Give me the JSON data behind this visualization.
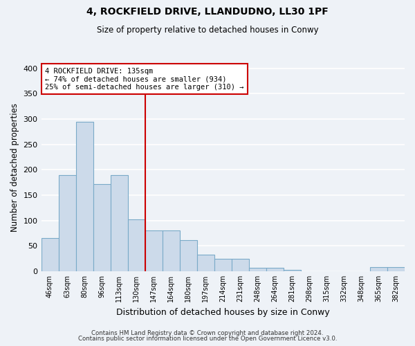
{
  "title": "4, ROCKFIELD DRIVE, LLANDUDNO, LL30 1PF",
  "subtitle": "Size of property relative to detached houses in Conwy",
  "xlabel": "Distribution of detached houses by size in Conwy",
  "ylabel": "Number of detached properties",
  "bar_color": "#ccdaea",
  "bar_edge_color": "#7aaac8",
  "bar_heights": [
    65,
    190,
    295,
    172,
    190,
    103,
    80,
    80,
    62,
    33,
    24,
    25,
    7,
    7,
    3,
    0,
    0,
    0,
    0,
    8,
    8
  ],
  "bin_labels": [
    "46sqm",
    "63sqm",
    "80sqm",
    "96sqm",
    "113sqm",
    "130sqm",
    "147sqm",
    "164sqm",
    "180sqm",
    "197sqm",
    "214sqm",
    "231sqm",
    "248sqm",
    "264sqm",
    "281sqm",
    "298sqm",
    "315sqm",
    "332sqm",
    "348sqm",
    "365sqm",
    "382sqm"
  ],
  "property_line_x": 5.5,
  "property_line_color": "#cc0000",
  "annotation_line1": "4 ROCKFIELD DRIVE: 135sqm",
  "annotation_line2": "← 74% of detached houses are smaller (934)",
  "annotation_line3": "25% of semi-detached houses are larger (310) →",
  "annotation_box_color": "#ffffff",
  "annotation_box_edge": "#cc0000",
  "ylim": [
    0,
    410
  ],
  "yticks": [
    0,
    50,
    100,
    150,
    200,
    250,
    300,
    350,
    400
  ],
  "footer1": "Contains HM Land Registry data © Crown copyright and database right 2024.",
  "footer2": "Contains public sector information licensed under the Open Government Licence v3.0.",
  "background_color": "#eef2f7",
  "grid_color": "#ffffff"
}
